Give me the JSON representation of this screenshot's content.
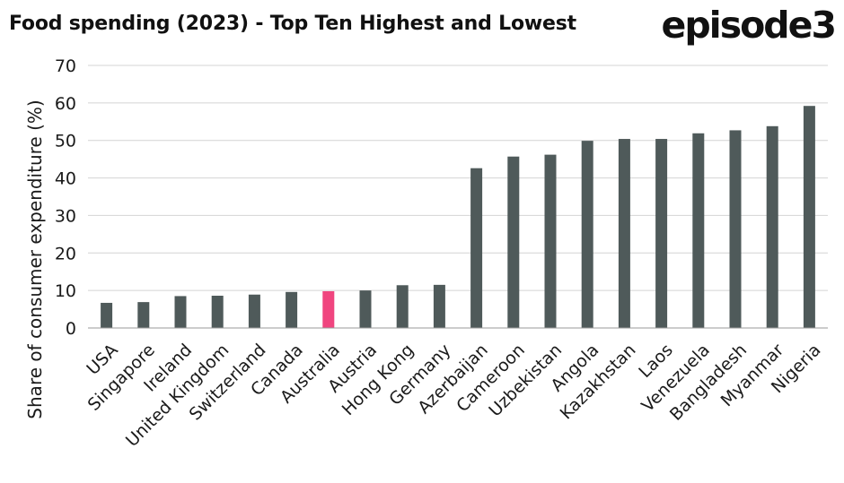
{
  "header": {
    "title": "Food spending (2023) - Top Ten Highest and Lowest",
    "brand": "episode3"
  },
  "colors": {
    "bar": "#4f5a5a",
    "highlight": "#f0457f",
    "grid": "#d4d4d4",
    "axis": "#9a9a9a"
  },
  "chart_data": {
    "type": "bar",
    "title": "Food spending (2023) - Top Ten Highest and Lowest",
    "xlabel": "",
    "ylabel": "Share of consumer expenditure (%)",
    "ylim": [
      0,
      70
    ],
    "yticks": [
      0,
      10,
      20,
      30,
      40,
      50,
      60,
      70
    ],
    "grid": true,
    "highlight_category": "Australia",
    "categories": [
      "USA",
      "Singapore",
      "Ireland",
      "United Kingdom",
      "Switzerland",
      "Canada",
      "Australia",
      "Austria",
      "Hong Kong",
      "Germany",
      "Azerbaijan",
      "Cameroon",
      "Uzbekistan",
      "Angola",
      "Kazakhstan",
      "Laos",
      "Venezuela",
      "Bangladesh",
      "Myanmar",
      "Nigeria"
    ],
    "values": [
      6.7,
      6.9,
      8.5,
      8.6,
      8.9,
      9.6,
      9.8,
      10.0,
      11.4,
      11.5,
      42.6,
      45.7,
      46.2,
      49.9,
      50.4,
      50.4,
      51.9,
      52.7,
      53.8,
      59.2
    ]
  }
}
